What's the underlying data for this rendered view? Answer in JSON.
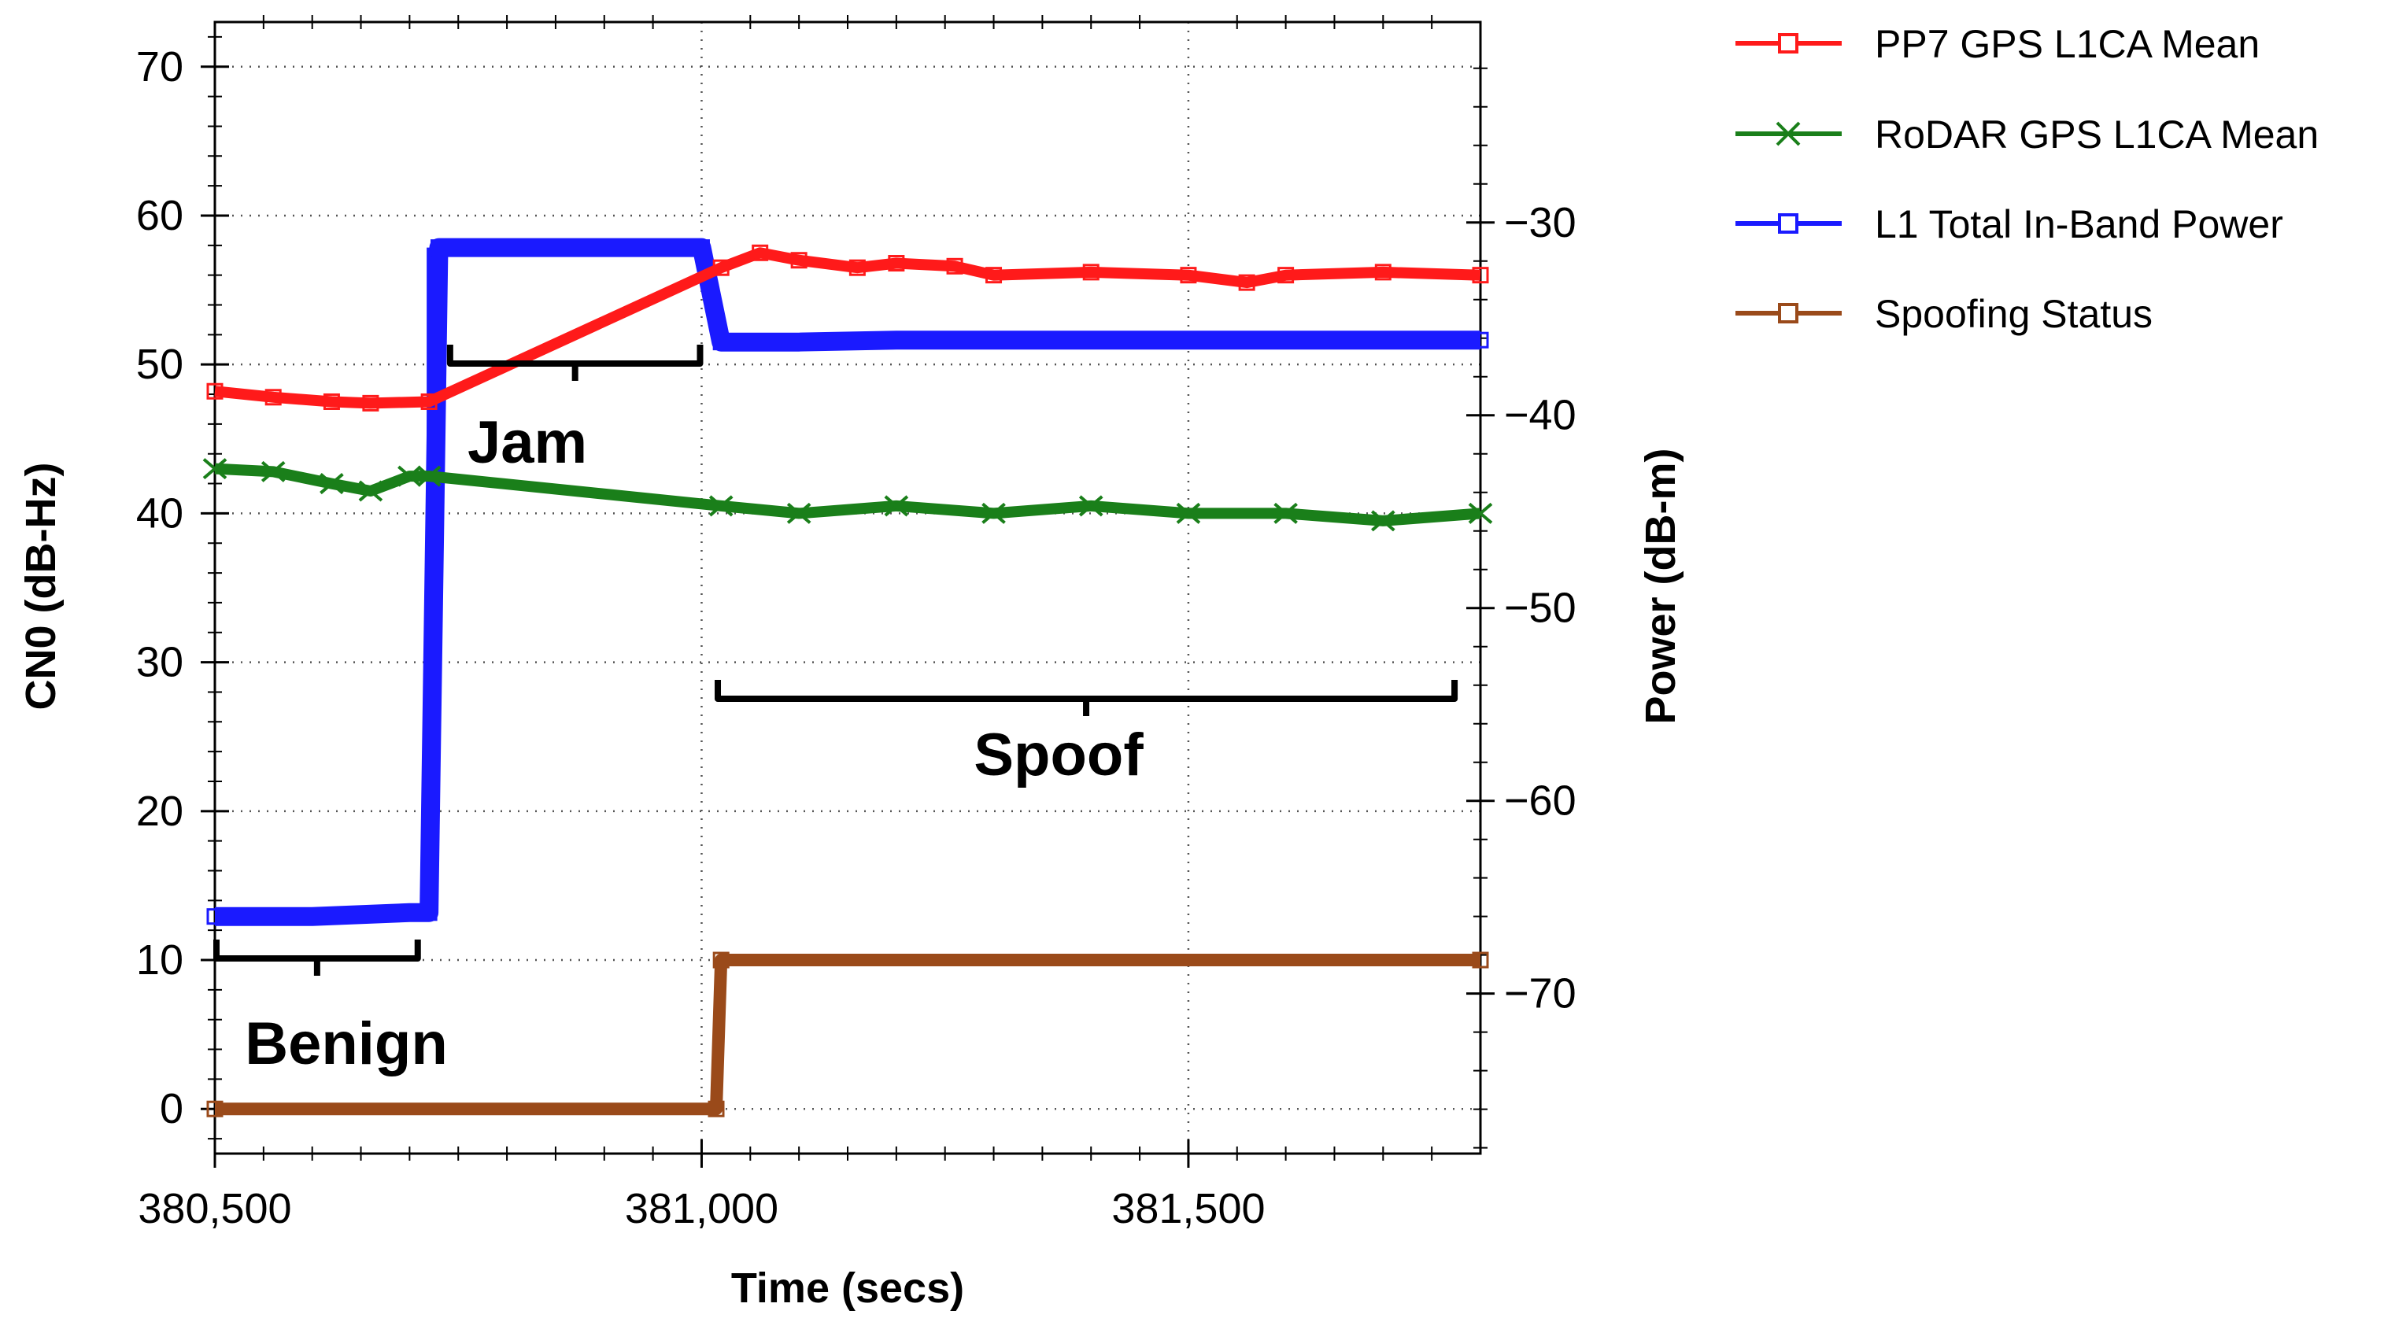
{
  "chart_data": {
    "type": "line",
    "xlabel": "Time (secs)",
    "ylabel_left": "CN0 (dB-Hz)",
    "ylabel_right": "Power (dB-m)",
    "xlim": [
      380500,
      381800
    ],
    "ylim_left": [
      -3,
      73
    ],
    "ylim_right": [
      -78.3,
      -19.6
    ],
    "x_ticks": [
      380500,
      381000,
      381500
    ],
    "x_tick_labels": [
      "380,500",
      "381,000",
      "381,500"
    ],
    "y_left_ticks": [
      0,
      10,
      20,
      30,
      40,
      50,
      60,
      70
    ],
    "y_right_ticks": [
      -30,
      -40,
      -50,
      -60,
      -70
    ],
    "y_right_tick_labels": [
      "−30",
      "−40",
      "−50",
      "−60",
      "−70"
    ],
    "grid": true,
    "legend_position": "top-right",
    "series": [
      {
        "name": "PP7 GPS L1CA Mean",
        "color": "#ff1a1a",
        "marker": "square",
        "axis": "left",
        "x": [
          380500,
          380560,
          380620,
          380660,
          380720,
          381020,
          381060,
          381100,
          381160,
          381200,
          381260,
          381300,
          381400,
          381500,
          381560,
          381600,
          381700,
          381800
        ],
        "values": [
          48.2,
          47.8,
          47.5,
          47.4,
          47.5,
          56.5,
          57.5,
          57.0,
          56.5,
          56.8,
          56.6,
          56.0,
          56.2,
          56.0,
          55.5,
          56.0,
          56.2,
          56.0
        ]
      },
      {
        "name": "RoDAR GPS L1CA Mean",
        "color": "#1a7f1a",
        "marker": "x",
        "axis": "left",
        "x": [
          380500,
          380560,
          380620,
          380660,
          380700,
          380720,
          381020,
          381100,
          381200,
          381300,
          381400,
          381500,
          381600,
          381700,
          381800
        ],
        "values": [
          43.0,
          42.8,
          42.0,
          41.5,
          42.5,
          42.5,
          40.5,
          40.0,
          40.5,
          40.0,
          40.5,
          40.0,
          40.0,
          39.5,
          40.0
        ]
      },
      {
        "name": "L1 Total In-Band Power",
        "color": "#1a1aff",
        "marker": "square",
        "axis": "right",
        "x": [
          380500,
          380600,
          380700,
          380720,
          380730,
          380800,
          380900,
          381000,
          381020,
          381100,
          381200,
          381400,
          381600,
          381800
        ],
        "values": [
          -66.0,
          -66.0,
          -65.8,
          -65.8,
          -31.3,
          -31.3,
          -31.3,
          -31.3,
          -36.2,
          -36.2,
          -36.1,
          -36.1,
          -36.1,
          -36.1
        ]
      },
      {
        "name": "Spoofing Status",
        "color": "#9a4a1a",
        "marker": "square",
        "axis": "left",
        "x": [
          380500,
          381015,
          381020,
          381800
        ],
        "values": [
          0,
          0,
          10,
          10
        ]
      }
    ],
    "annotations": [
      {
        "text": "Benign",
        "x_start": 380500,
        "x_end": 380710
      },
      {
        "text": "Jam",
        "x_start": 380740,
        "x_end": 381000
      },
      {
        "text": "Spoof",
        "x_start": 381015,
        "x_end": 381775
      }
    ]
  }
}
